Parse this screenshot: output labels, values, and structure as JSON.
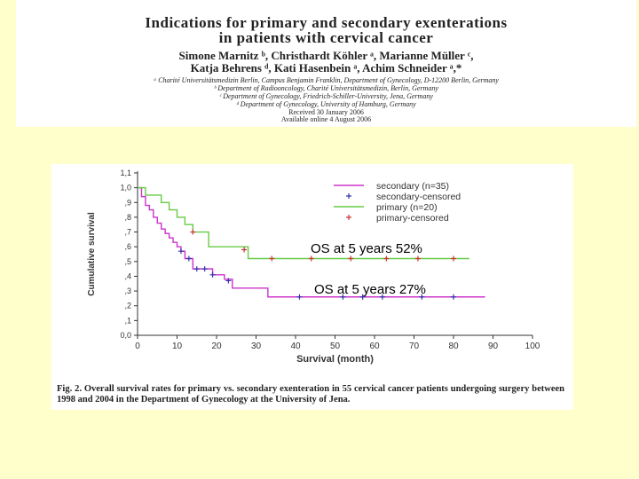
{
  "header": {
    "title_line1": "Indications for primary and secondary exenterations",
    "title_line2": "in patients with cervical cancer",
    "authors_line1": "Simone Marnitz ᵇ, Christhardt Köhler ᵃ, Marianne Müller ᶜ,",
    "authors_line2": "Katja Behrens ᵈ, Kati Hasenbein ᵃ, Achim Schneider ᵃ,*",
    "affiliation1": "ᵃ Charité Universitätsmedizin Berlin, Campus Benjamin Franklin, Department of Gynecology, D-12200 Berlin, Germany",
    "affiliation2": "ᵇ Department of Radiooncology, Charité Universitätsmedizin, Berlin, Germany",
    "affiliation3": "ᶜ Department of Gynecology, Friedrich-Schiller-University, Jena, Germany",
    "affiliation4": "ᵈ Department of Gynecology, University of Hamburg, Germany",
    "received": "Received 30 January 2006",
    "available": "Available online 4 August 2006"
  },
  "annotations": {
    "primary": "OS at 5 years 52%",
    "secondary": "OS at 5 years 27%"
  },
  "caption": "Fig. 2. Overall survival rates for primary vs. secondary exenteration in 55 cervical cancer patients undergoing surgery between 1998 and 2004 in the Department of Gynecology at the University of Jena.",
  "chart_data": {
    "type": "line",
    "title": "",
    "xlabel": "Survival (month)",
    "ylabel": "Cumulative survival",
    "xlim": [
      0,
      100
    ],
    "ylim": [
      0,
      1.1
    ],
    "x_ticks": [
      "0",
      "10",
      "20",
      "30",
      "40",
      "50",
      "60",
      "70",
      "80",
      "90",
      "100"
    ],
    "y_ticks": [
      "0,0",
      ",1",
      ",2",
      ",3",
      ",4",
      ",5",
      ",6",
      ",7",
      ",8",
      ",9",
      "1,0",
      "1,1"
    ],
    "legend": [
      "secondary (n=35)",
      "secondary-censored",
      "primary (n=20)",
      "primary-censored"
    ],
    "colors": {
      "secondary": "#cc33cc",
      "secondary_censored": "#3333aa",
      "primary": "#66cc44",
      "primary_censored": "#cc3333"
    },
    "series": [
      {
        "name": "secondary (n=35)",
        "step_x": [
          0,
          1,
          2,
          3,
          4,
          5,
          6,
          7,
          8,
          9,
          10,
          11,
          12,
          14,
          16,
          19,
          22,
          24,
          33,
          88
        ],
        "step_y": [
          1.0,
          0.94,
          0.88,
          0.85,
          0.8,
          0.76,
          0.72,
          0.69,
          0.66,
          0.63,
          0.6,
          0.57,
          0.52,
          0.45,
          0.45,
          0.41,
          0.38,
          0.32,
          0.26,
          0.26
        ],
        "censored_x": [
          11,
          13,
          15,
          17,
          19,
          23,
          41,
          52,
          57,
          62,
          72,
          80
        ],
        "censored_y": [
          0.57,
          0.52,
          0.45,
          0.45,
          0.41,
          0.37,
          0.26,
          0.26,
          0.26,
          0.26,
          0.26,
          0.26
        ]
      },
      {
        "name": "primary (n=20)",
        "step_x": [
          0,
          2,
          6,
          8,
          10,
          12,
          14,
          18,
          28,
          84
        ],
        "step_y": [
          1.0,
          0.95,
          0.9,
          0.85,
          0.8,
          0.75,
          0.7,
          0.6,
          0.52,
          0.52
        ],
        "censored_x": [
          14,
          27,
          34,
          44,
          54,
          63,
          71,
          80
        ],
        "censored_y": [
          0.7,
          0.58,
          0.52,
          0.52,
          0.52,
          0.52,
          0.52,
          0.52
        ]
      }
    ]
  }
}
